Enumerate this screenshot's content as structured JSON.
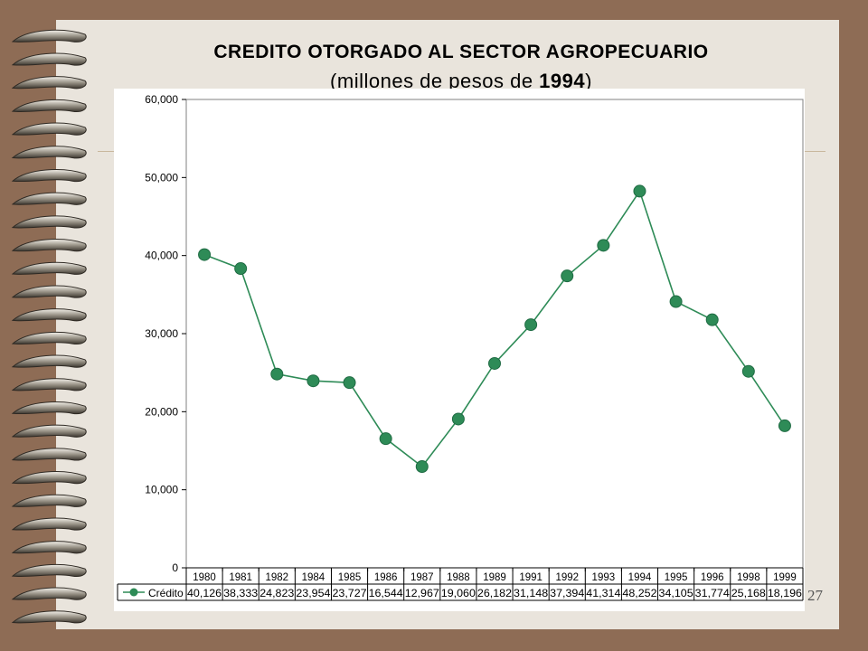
{
  "page": {
    "number": "27"
  },
  "chart_data": {
    "type": "line",
    "title_line1": "CREDITO OTORGADO AL SECTOR AGROPECUARIO",
    "title_line2_prefix": "(millones de pesos de ",
    "title_line2_bold": "1994",
    "title_line2_suffix": ")",
    "categories": [
      "1980",
      "1981",
      "1982",
      "1984",
      "1985",
      "1986",
      "1987",
      "1988",
      "1989",
      "1991",
      "1992",
      "1993",
      "1994",
      "1995",
      "1996",
      "1998",
      "1999"
    ],
    "series": [
      {
        "name": "Crédito",
        "values": [
          40126,
          38333,
          24823,
          23954,
          23727,
          16544,
          12967,
          19060,
          26182,
          31148,
          37394,
          41314,
          48252,
          34105,
          31774,
          25168,
          18196
        ],
        "labels": [
          "40,126",
          "38,333",
          "24,823",
          "23,954",
          "23,727",
          "16,544",
          "12,967",
          "19,060",
          "26,182",
          "31,148",
          "37,394",
          "41,314",
          "48,252",
          "34,105",
          "31,774",
          "25,168",
          "18,196"
        ]
      }
    ],
    "ylim": [
      0,
      60000
    ],
    "yticks": [
      0,
      10000,
      20000,
      30000,
      40000,
      50000,
      60000
    ],
    "ytick_labels": [
      "0",
      "10,000",
      "20,000",
      "30,000",
      "40,000",
      "50,000",
      "60,000"
    ],
    "color": "#2e8b57",
    "grid": false,
    "legend": "data-table-bottom"
  }
}
